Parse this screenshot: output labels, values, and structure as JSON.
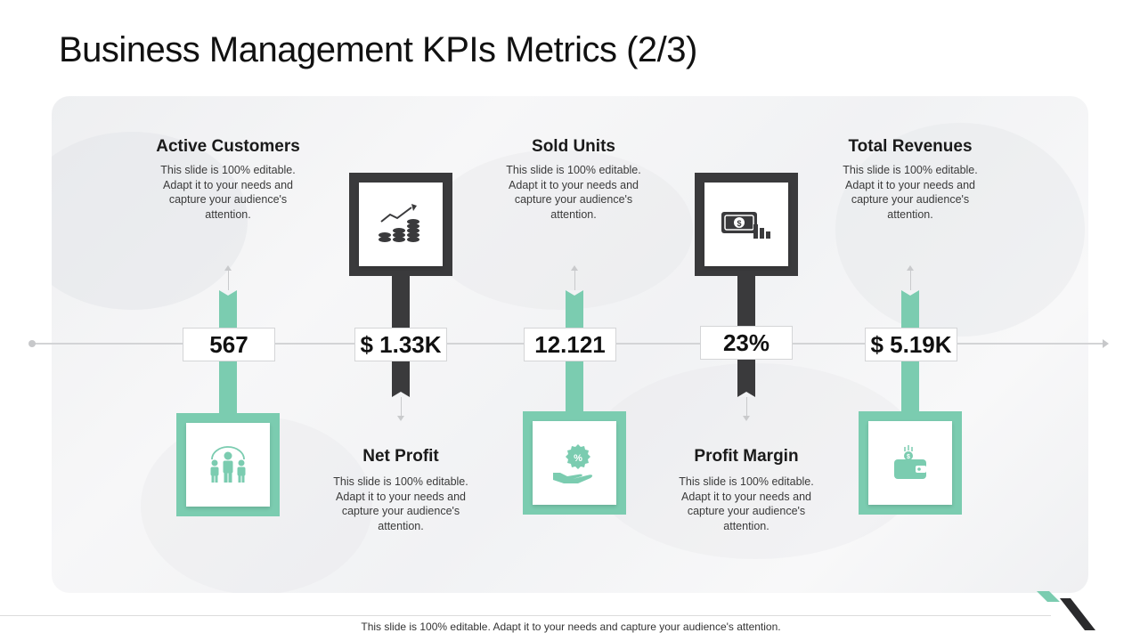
{
  "title": "Business Management KPIs Metrics (2/3)",
  "colors": {
    "accent_green": "#7bccb0",
    "accent_dark": "#3a3a3c"
  },
  "kpis": [
    {
      "heading": "Active Customers",
      "value": "567",
      "description": "This slide is 100% editable.  Adapt it to your needs and capture your audience's attention.",
      "icon": "customers-group-icon",
      "position": "top",
      "color": "green"
    },
    {
      "heading": "Net Profit",
      "value": "$ 1.33K",
      "description": "This slide is 100% editable.  Adapt it to your needs and capture your audience's attention.",
      "icon": "growth-coins-chart-icon",
      "position": "bottom",
      "color": "dark"
    },
    {
      "heading": "Sold Units",
      "value": "12.121",
      "description": "This slide is 100% editable.  Adapt it to your needs and capture your audience's attention.",
      "icon": "percent-badge-hand-icon",
      "position": "top",
      "color": "green"
    },
    {
      "heading": "Profit Margin",
      "value": "23%",
      "description": "This slide is 100% editable.  Adapt it to your needs and capture your audience's attention.",
      "icon": "money-bar-chart-icon",
      "position": "bottom",
      "color": "dark"
    },
    {
      "heading": "Total Revenues",
      "value": "$ 5.19K",
      "description": "This slide is 100% editable.  Adapt it to your needs and capture your audience's attention.",
      "icon": "wallet-coin-icon",
      "position": "top",
      "color": "green"
    }
  ],
  "footer": "This slide is 100% editable.  Adapt it to your needs and capture your audience's attention."
}
